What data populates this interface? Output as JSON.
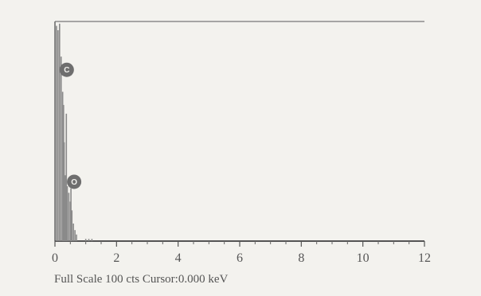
{
  "chart_data": {
    "type": "bar",
    "title": "",
    "xlabel": "",
    "ylabel": "",
    "x_unit": "keV",
    "xlim": [
      0,
      12
    ],
    "ylim": [
      0,
      100
    ],
    "x_ticks": [
      "0",
      "2",
      "4",
      "6",
      "8",
      "10",
      "12"
    ],
    "grid": false,
    "bars": [
      {
        "x": 0.05,
        "y": 98
      },
      {
        "x": 0.1,
        "y": 96
      },
      {
        "x": 0.15,
        "y": 99
      },
      {
        "x": 0.2,
        "y": 84
      },
      {
        "x": 0.25,
        "y": 68
      },
      {
        "x": 0.28,
        "y": 62
      },
      {
        "x": 0.3,
        "y": 45
      },
      {
        "x": 0.33,
        "y": 30
      },
      {
        "x": 0.37,
        "y": 58
      },
      {
        "x": 0.4,
        "y": 25
      },
      {
        "x": 0.45,
        "y": 22
      },
      {
        "x": 0.5,
        "y": 18
      },
      {
        "x": 0.52,
        "y": 24
      },
      {
        "x": 0.55,
        "y": 14
      },
      {
        "x": 0.6,
        "y": 8
      },
      {
        "x": 0.65,
        "y": 5
      },
      {
        "x": 0.7,
        "y": 3
      },
      {
        "x": 1.0,
        "y": 1
      },
      {
        "x": 1.1,
        "y": 1
      },
      {
        "x": 1.2,
        "y": 1
      }
    ],
    "peaks": [
      {
        "label": "C",
        "x": 0.28,
        "y": 78
      },
      {
        "label": "O",
        "x": 0.52,
        "y": 27
      }
    ]
  },
  "footer": {
    "text": "Full Scale 100 cts Cursor:0.000 keV"
  }
}
